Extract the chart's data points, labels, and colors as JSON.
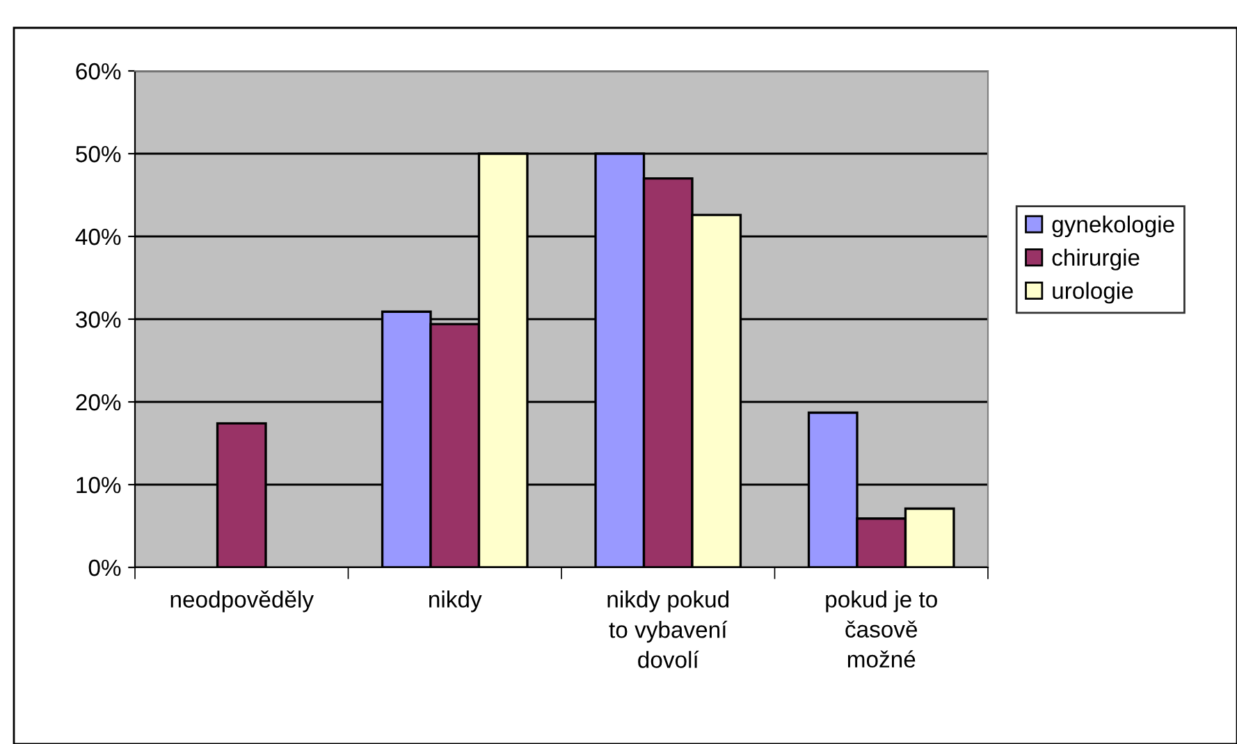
{
  "chart_data": {
    "type": "bar",
    "categories": [
      "neodpověděly",
      "nikdy",
      "nikdy pokud\nto vybavení\ndovolí",
      "pokud je to\nčasově\nmožné"
    ],
    "series": [
      {
        "name": "gynekologie",
        "color": "#9999ff",
        "values": [
          null,
          30.9,
          50,
          18.7
        ]
      },
      {
        "name": "chirurgie",
        "color": "#993366",
        "values": [
          17.4,
          29.4,
          47.0,
          5.9
        ]
      },
      {
        "name": "urologie",
        "color": "#ffffcc",
        "values": [
          null,
          50,
          42.6,
          7.1
        ]
      }
    ],
    "ylim": [
      0,
      60
    ],
    "yticks": [
      {
        "value": 0,
        "label": "0%"
      },
      {
        "value": 10,
        "label": "10%"
      },
      {
        "value": 20,
        "label": "20%"
      },
      {
        "value": 30,
        "label": "30%"
      },
      {
        "value": 40,
        "label": "40%"
      },
      {
        "value": 50,
        "label": "50%"
      },
      {
        "value": 60,
        "label": "60%"
      }
    ],
    "grid": "y",
    "legend": "right"
  }
}
